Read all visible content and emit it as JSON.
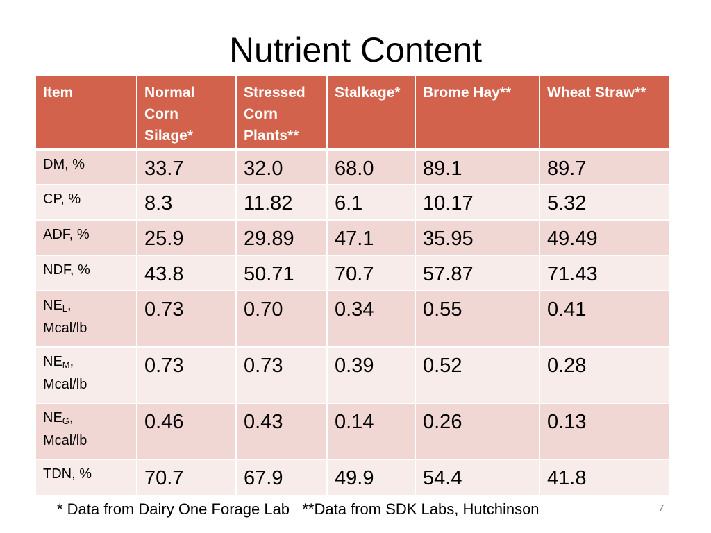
{
  "title": "Nutrient Content",
  "table": {
    "headers": [
      "Item",
      "Normal Corn Silage*",
      "Stressed Corn Plants**",
      "Stalkage*",
      "Brome Hay**",
      "Wheat Straw**"
    ],
    "rows": [
      {
        "label": "DM, %",
        "values": [
          "33.7",
          "32.0",
          "68.0",
          "89.1",
          "89.7"
        ]
      },
      {
        "label": "CP, %",
        "values": [
          "8.3",
          "11.82",
          "6.1",
          "10.17",
          "5.32"
        ]
      },
      {
        "label": "ADF, %",
        "values": [
          "25.9",
          "29.89",
          "47.1",
          "35.95",
          "49.49"
        ]
      },
      {
        "label": "NDF, %",
        "values": [
          "43.8",
          "50.71",
          "70.7",
          "57.87",
          "71.43"
        ]
      },
      {
        "label_main": "NE",
        "label_sub": "L",
        "label_rest": ",",
        "label_line2": "Mcal/lb",
        "values": [
          "0.73",
          "0.70",
          "0.34",
          "0.55",
          "0.41"
        ]
      },
      {
        "label_main": "NE",
        "label_sub": "M",
        "label_rest": ",",
        "label_line2": "Mcal/lb",
        "values": [
          "0.73",
          "0.73",
          "0.39",
          "0.52",
          "0.28"
        ]
      },
      {
        "label_main": "NE",
        "label_sub": "G",
        "label_rest": ",",
        "label_line2": "Mcal/lb",
        "values": [
          "0.46",
          "0.43",
          "0.14",
          "0.26",
          "0.13"
        ]
      },
      {
        "label": "TDN, %",
        "values": [
          "70.7",
          "67.9",
          "49.9",
          "54.4",
          "41.8"
        ]
      }
    ]
  },
  "footnote": "* Data from Dairy One Forage Lab   **Data from SDK Labs, Hutchinson",
  "page_number": "7"
}
